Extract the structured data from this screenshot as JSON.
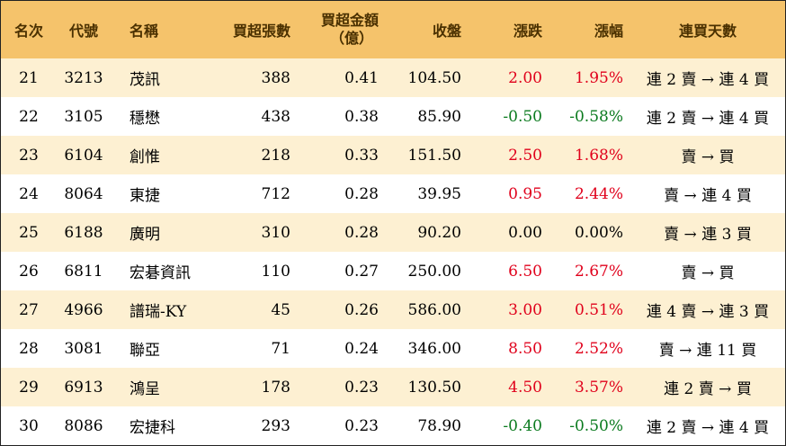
{
  "header": {
    "rank": "名次",
    "code": "代號",
    "name": "名稱",
    "net_volume": "買超張數",
    "net_amount_line1": "買超金額",
    "net_amount_line2": "（億）",
    "close": "收盤",
    "change": "漲跌",
    "change_pct": "漲幅",
    "streak": "連買天數"
  },
  "colors": {
    "header_bg": "#f5c36b",
    "odd_row_bg": "#fdf0d2",
    "up": "#e0001b",
    "down": "#0a7a1e"
  },
  "rows": [
    {
      "rank": "21",
      "code": "3213",
      "name": "茂訊",
      "net_volume": "388",
      "net_amount": "0.41",
      "close": "104.50",
      "change": "2.00",
      "change_pct": "1.95%",
      "direction": "up",
      "streak": "連 2 賣 → 連 4 買"
    },
    {
      "rank": "22",
      "code": "3105",
      "name": "穩懋",
      "net_volume": "438",
      "net_amount": "0.38",
      "close": "85.90",
      "change": "-0.50",
      "change_pct": "-0.58%",
      "direction": "down",
      "streak": "連 2 賣 → 連 4 買"
    },
    {
      "rank": "23",
      "code": "6104",
      "name": "創惟",
      "net_volume": "218",
      "net_amount": "0.33",
      "close": "151.50",
      "change": "2.50",
      "change_pct": "1.68%",
      "direction": "up",
      "streak": "賣 → 買"
    },
    {
      "rank": "24",
      "code": "8064",
      "name": "東捷",
      "net_volume": "712",
      "net_amount": "0.28",
      "close": "39.95",
      "change": "0.95",
      "change_pct": "2.44%",
      "direction": "up",
      "streak": "賣 → 連 4 買"
    },
    {
      "rank": "25",
      "code": "6188",
      "name": "廣明",
      "net_volume": "310",
      "net_amount": "0.28",
      "close": "90.20",
      "change": "0.00",
      "change_pct": "0.00%",
      "direction": "flat",
      "streak": "賣 → 連 3 買"
    },
    {
      "rank": "26",
      "code": "6811",
      "name": "宏碁資訊",
      "net_volume": "110",
      "net_amount": "0.27",
      "close": "250.00",
      "change": "6.50",
      "change_pct": "2.67%",
      "direction": "up",
      "streak": "賣 → 買"
    },
    {
      "rank": "27",
      "code": "4966",
      "name": "譜瑞-KY",
      "net_volume": "45",
      "net_amount": "0.26",
      "close": "586.00",
      "change": "3.00",
      "change_pct": "0.51%",
      "direction": "up",
      "streak": "連 4 賣 → 連 3 買"
    },
    {
      "rank": "28",
      "code": "3081",
      "name": "聯亞",
      "net_volume": "71",
      "net_amount": "0.24",
      "close": "346.00",
      "change": "8.50",
      "change_pct": "2.52%",
      "direction": "up",
      "streak": "賣 → 連 11 買"
    },
    {
      "rank": "29",
      "code": "6913",
      "name": "鴻呈",
      "net_volume": "178",
      "net_amount": "0.23",
      "close": "130.50",
      "change": "4.50",
      "change_pct": "3.57%",
      "direction": "up",
      "streak": "連 2 賣 → 買"
    },
    {
      "rank": "30",
      "code": "8086",
      "name": "宏捷科",
      "net_volume": "293",
      "net_amount": "0.23",
      "close": "78.90",
      "change": "-0.40",
      "change_pct": "-0.50%",
      "direction": "down",
      "streak": "連 2 賣 → 連 4 買"
    }
  ]
}
